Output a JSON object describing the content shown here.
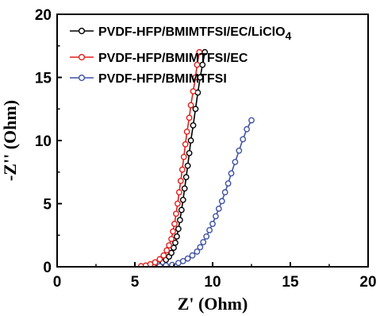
{
  "chart_data": {
    "type": "scatter",
    "xlabel": "Z' (Ohm)",
    "ylabel": "-Z'' (Ohm)",
    "xlim": [
      0,
      20
    ],
    "ylim": [
      0,
      20
    ],
    "xticks": [
      "0",
      "5",
      "10",
      "15",
      "20"
    ],
    "yticks": [
      "0",
      "5",
      "10",
      "15",
      "20"
    ],
    "grid": false,
    "legend_position": "top-left",
    "series": [
      {
        "name": "PVDF-HFP/BMIMTFSI/EC/LiClO4",
        "legend_main": "PVDF-HFP/BMIMTFSI/EC/LiClO",
        "legend_sub": "4",
        "color": "#000000",
        "points": [
          [
            5.9,
            0.05
          ],
          [
            6.2,
            0.1
          ],
          [
            6.5,
            0.2
          ],
          [
            6.8,
            0.35
          ],
          [
            7.0,
            0.55
          ],
          [
            7.2,
            0.8
          ],
          [
            7.35,
            1.1
          ],
          [
            7.5,
            1.5
          ],
          [
            7.6,
            1.9
          ],
          [
            7.7,
            2.4
          ],
          [
            7.8,
            3.0
          ],
          [
            7.9,
            3.7
          ],
          [
            8.0,
            4.5
          ],
          [
            8.1,
            5.3
          ],
          [
            8.2,
            6.2
          ],
          [
            8.3,
            7.1
          ],
          [
            8.4,
            8.0
          ],
          [
            8.5,
            9.0
          ],
          [
            8.6,
            10.0
          ],
          [
            8.75,
            11.2
          ],
          [
            8.9,
            12.5
          ],
          [
            9.05,
            13.8
          ],
          [
            9.2,
            15.0
          ],
          [
            9.35,
            16.0
          ],
          [
            9.5,
            17.0
          ]
        ]
      },
      {
        "name": "PVDF-HFP/BMIMTFSI/EC",
        "legend_main": "PVDF-HFP/BMIMTFSI/EC",
        "legend_sub": "",
        "color": "#e0201b",
        "points": [
          [
            5.4,
            0.05
          ],
          [
            5.7,
            0.1
          ],
          [
            6.0,
            0.2
          ],
          [
            6.3,
            0.35
          ],
          [
            6.6,
            0.6
          ],
          [
            6.85,
            0.9
          ],
          [
            7.05,
            1.3
          ],
          [
            7.2,
            1.7
          ],
          [
            7.35,
            2.2
          ],
          [
            7.45,
            2.8
          ],
          [
            7.55,
            3.4
          ],
          [
            7.65,
            4.2
          ],
          [
            7.75,
            5.0
          ],
          [
            7.85,
            5.9
          ],
          [
            7.95,
            6.8
          ],
          [
            8.05,
            7.7
          ],
          [
            8.15,
            8.7
          ],
          [
            8.25,
            9.7
          ],
          [
            8.35,
            10.7
          ],
          [
            8.5,
            11.8
          ],
          [
            8.6,
            12.8
          ],
          [
            8.75,
            13.9
          ],
          [
            8.9,
            15.0
          ],
          [
            9.0,
            16.0
          ],
          [
            9.15,
            17.0
          ]
        ]
      },
      {
        "name": "PVDF-HFP/BMIMTFSI",
        "legend_main": "PVDF-HFP/BMIMTFSI",
        "legend_sub": "",
        "color": "#3f51a5",
        "points": [
          [
            6.6,
            0.05
          ],
          [
            7.0,
            0.1
          ],
          [
            7.4,
            0.15
          ],
          [
            7.8,
            0.3
          ],
          [
            8.1,
            0.45
          ],
          [
            8.4,
            0.65
          ],
          [
            8.7,
            0.9
          ],
          [
            9.0,
            1.2
          ],
          [
            9.2,
            1.55
          ],
          [
            9.4,
            1.95
          ],
          [
            9.6,
            2.4
          ],
          [
            9.8,
            2.9
          ],
          [
            10.0,
            3.4
          ],
          [
            10.2,
            4.0
          ],
          [
            10.4,
            4.6
          ],
          [
            10.6,
            5.2
          ],
          [
            10.8,
            5.9
          ],
          [
            11.0,
            6.6
          ],
          [
            11.2,
            7.4
          ],
          [
            11.45,
            8.3
          ],
          [
            11.7,
            9.2
          ],
          [
            11.95,
            10.1
          ],
          [
            12.2,
            10.9
          ],
          [
            12.5,
            11.6
          ]
        ]
      }
    ]
  }
}
